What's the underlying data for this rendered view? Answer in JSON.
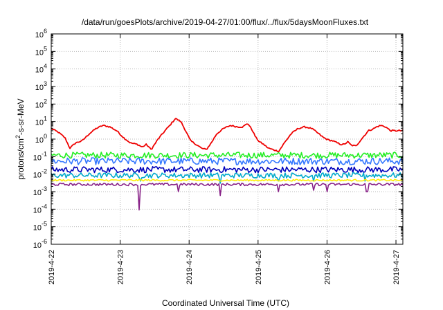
{
  "chart_data": {
    "type": "line",
    "title": "/data/run/goesPlots/archive/2019-04-27/01:00/flux/../flux/5daysMoonFluxes.txt",
    "xlabel": "Coordinated Universal Time (UTC)",
    "ylabel": {
      "base": "protons/cm",
      "sup": "2",
      "rest": "-s-sr-MeV"
    },
    "x_ticks": [
      "2019-4-22",
      "2019-4-23",
      "2019-4-24",
      "2019-4-25",
      "2019-4-26",
      "2019-4-27"
    ],
    "xlim": [
      0,
      5.1
    ],
    "y_scale": "log",
    "y_tick_exponents": [
      -6,
      -5,
      -4,
      -3,
      -2,
      -1,
      0,
      1,
      2,
      3,
      4,
      5,
      6
    ],
    "y_tick_base": "10",
    "ylim": [
      1e-06,
      1000000.0
    ],
    "grid": true,
    "legend": "none",
    "series": [
      {
        "color": "#ee0000",
        "x": [
          0.0,
          0.1,
          0.2,
          0.27,
          0.35,
          0.45,
          0.55,
          0.65,
          0.75,
          0.85,
          0.95,
          1.05,
          1.15,
          1.25,
          1.32,
          1.38,
          1.45,
          1.55,
          1.65,
          1.72,
          1.8,
          1.88,
          1.95,
          2.02,
          2.1,
          2.18,
          2.25,
          2.32,
          2.4,
          2.5,
          2.6,
          2.7,
          2.78,
          2.85,
          2.92,
          2.97,
          3.02,
          3.08,
          3.15,
          3.22,
          3.3,
          3.38,
          3.48,
          3.58,
          3.68,
          3.78,
          3.88,
          3.95,
          4.02,
          4.08,
          4.15,
          4.2,
          4.25,
          4.3,
          4.35,
          4.42,
          4.5,
          4.6,
          4.68,
          4.72,
          4.78,
          4.85,
          4.92,
          5.0,
          5.05,
          5.1
        ],
        "y": [
          4,
          2.5,
          1.2,
          0.3,
          0.6,
          0.8,
          2,
          4,
          6,
          5,
          3,
          1.2,
          0.6,
          0.5,
          0.35,
          0.5,
          0.25,
          1,
          3,
          6,
          15,
          10,
          3,
          0.8,
          0.5,
          0.3,
          0.25,
          0.6,
          2,
          4,
          6,
          5,
          5,
          8,
          3,
          1.2,
          0.7,
          0.5,
          0.3,
          0.25,
          0.2,
          0.6,
          2,
          4,
          5,
          4,
          2,
          1.2,
          0.9,
          0.8,
          0.6,
          0.5,
          0.5,
          0.7,
          0.45,
          0.4,
          1,
          3,
          4,
          5,
          6,
          5,
          3,
          3,
          3,
          3
        ]
      },
      {
        "color": "#22ee22",
        "base": 0.12,
        "variation": 0.35,
        "dips": []
      },
      {
        "color": "#3377ff",
        "base": 0.055,
        "variation": 0.4,
        "dips": []
      },
      {
        "color": "#0000bb",
        "base": 0.018,
        "variation": 0.35,
        "dips": []
      },
      {
        "color": "#00aacc",
        "base": 0.0085,
        "variation": 0.3,
        "dips": [
          [
            1.3,
            0.004
          ],
          [
            2.45,
            0.003
          ],
          [
            3.3,
            0.004
          ],
          [
            3.8,
            0.004
          ],
          [
            4.55,
            0.004
          ]
        ]
      },
      {
        "color": "#ffee00",
        "base": 0.0045,
        "variation": 0.1,
        "dips": []
      },
      {
        "color": "#882288",
        "base": 0.0026,
        "variation": 0.15,
        "dips": [
          [
            1.28,
            9e-05
          ],
          [
            2.45,
            0.0006
          ],
          [
            1.85,
            0.001
          ],
          [
            3.3,
            0.001
          ],
          [
            3.8,
            0.0012
          ],
          [
            4.0,
            0.001
          ],
          [
            4.58,
            0.001
          ]
        ]
      }
    ]
  }
}
